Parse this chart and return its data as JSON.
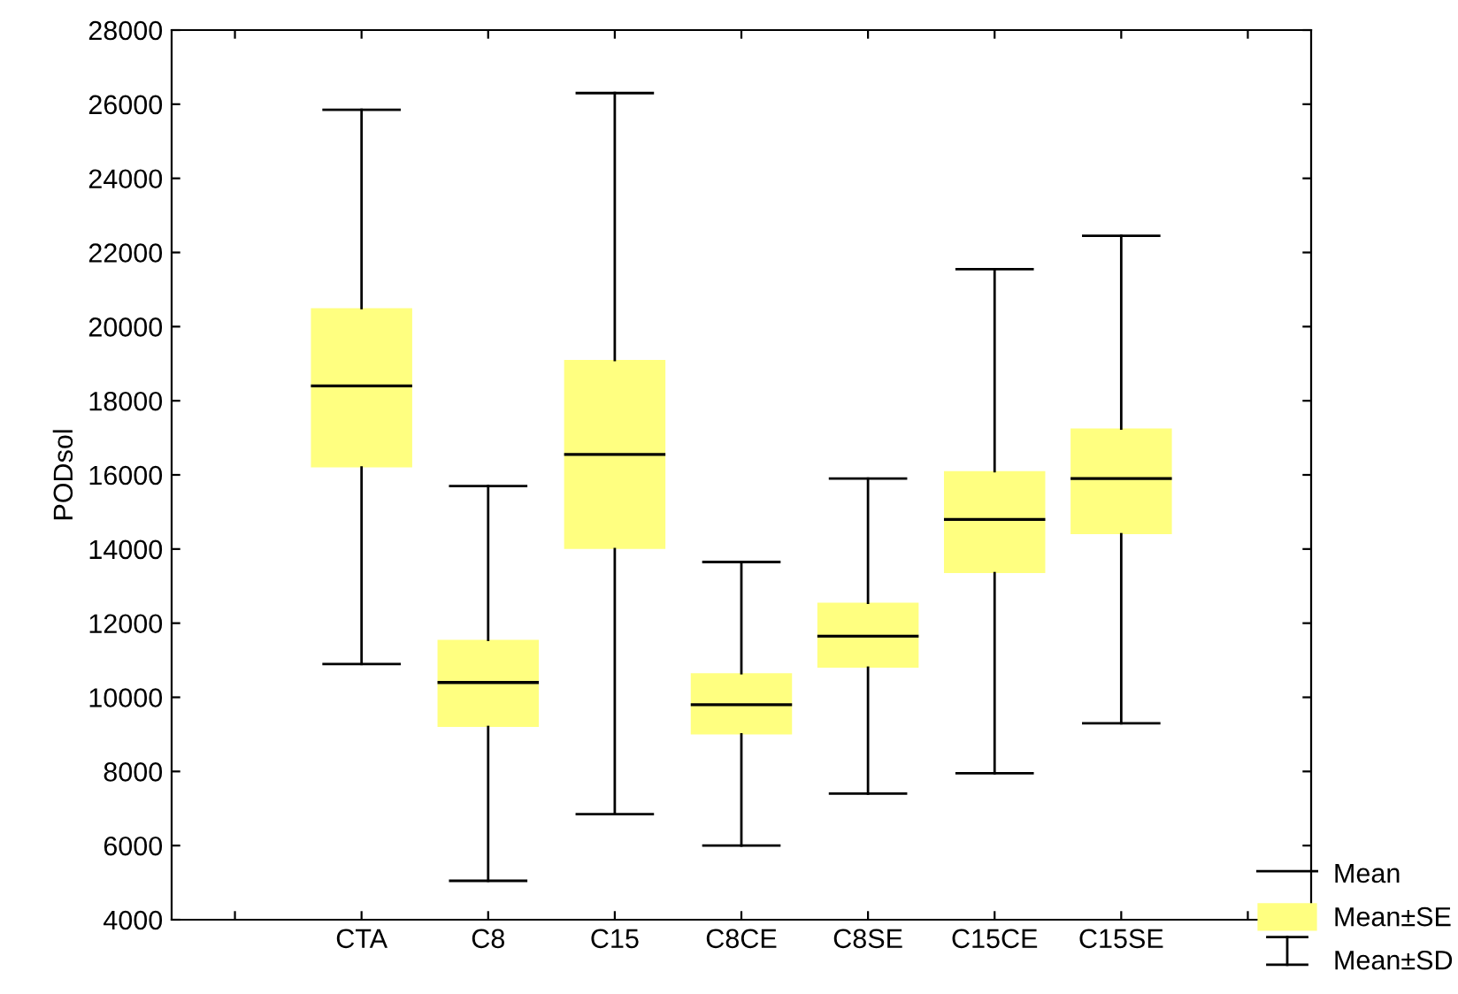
{
  "chart_data": {
    "type": "box",
    "ylabel": "PODsol",
    "categories": [
      null,
      "CTA",
      "C8",
      "C15",
      "C8CE",
      "C8SE",
      "C15CE",
      "C15SE",
      null
    ],
    "series": [
      {
        "name": "Mean±SE",
        "color": "#ffff80",
        "boxes": [
          null,
          {
            "low": 10900,
            "q1": 16200,
            "median": 18400,
            "q3": 20500,
            "high": 25850
          },
          {
            "low": 5050,
            "q1": 9200,
            "median": 10400,
            "q3": 11550,
            "high": 15700
          },
          {
            "low": 6850,
            "q1": 14000,
            "median": 16550,
            "q3": 19100,
            "high": 26300
          },
          {
            "low": 6000,
            "q1": 9000,
            "median": 9800,
            "q3": 10650,
            "high": 13650
          },
          {
            "low": 7400,
            "q1": 10800,
            "median": 11650,
            "q3": 12550,
            "high": 15900
          },
          {
            "low": 7950,
            "q1": 13350,
            "median": 14800,
            "q3": 16100,
            "high": 21550
          },
          {
            "low": 9300,
            "q1": 14400,
            "median": 15900,
            "q3": 17250,
            "high": 22450
          },
          null
        ]
      }
    ],
    "ylim": [
      4000,
      28000
    ],
    "yticks": [
      4000,
      6000,
      8000,
      10000,
      12000,
      14000,
      16000,
      18000,
      20000,
      22000,
      24000,
      26000,
      28000
    ],
    "grid": false,
    "legend": "bottom right",
    "annotations": [
      "Mean",
      "Mean±SD"
    ]
  }
}
